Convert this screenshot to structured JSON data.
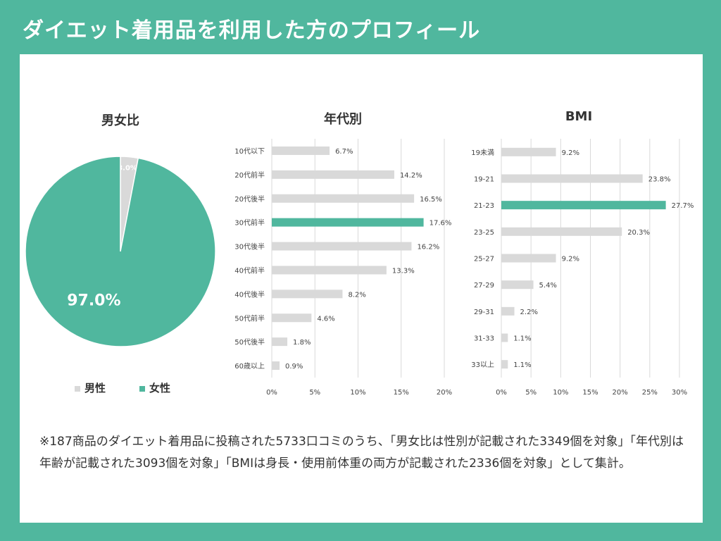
{
  "title": "ダイエット着用品を利用した方のプロフィール",
  "colors": {
    "accent": "#50b79e",
    "bar": "#d9d9d9",
    "background": "#ffffff"
  },
  "note": "※187商品のダイエット着用品に投稿された5733口コミのうち、「男女比は性別が記載された3349個を対象」「年代別は年齢が記載された3093個を対象」「BMIは身長・使用前体重の両方が記載された2336個を対象」として集計。",
  "chart_data": [
    {
      "type": "pie",
      "title": "男女比",
      "labels": [
        "男性",
        "女性"
      ],
      "values": [
        3.0,
        97.0
      ],
      "value_labels": [
        "3.0%",
        "97.0%"
      ],
      "colors": [
        "#d9d9d9",
        "#50b79e"
      ],
      "legend": "bottom"
    },
    {
      "type": "bar",
      "orientation": "horizontal",
      "title": "年代別",
      "categories": [
        "10代以下",
        "20代前半",
        "20代後半",
        "30代前半",
        "30代後半",
        "40代前半",
        "40代後半",
        "50代前半",
        "50代後半",
        "60歳以上"
      ],
      "values": [
        6.7,
        14.2,
        16.5,
        17.6,
        16.2,
        13.3,
        8.2,
        4.6,
        1.8,
        0.9
      ],
      "value_labels": [
        "6.7%",
        "14.2%",
        "16.5%",
        "17.6%",
        "16.2%",
        "13.3%",
        "8.2%",
        "4.6%",
        "1.8%",
        "0.9%"
      ],
      "highlight_index": 3,
      "xlim": [
        0,
        20
      ],
      "ticks": [
        "0%",
        "5%",
        "10%",
        "15%",
        "20%"
      ],
      "grid": true
    },
    {
      "type": "bar",
      "orientation": "horizontal",
      "title": "BMI",
      "categories": [
        "19未満",
        "19-21",
        "21-23",
        "23-25",
        "25-27",
        "27-29",
        "29-31",
        "31-33",
        "33以上"
      ],
      "values": [
        9.2,
        23.8,
        27.7,
        20.3,
        9.2,
        5.4,
        2.2,
        1.1,
        1.1
      ],
      "value_labels": [
        "9.2%",
        "23.8%",
        "27.7%",
        "20.3%",
        "9.2%",
        "5.4%",
        "2.2%",
        "1.1%",
        "1.1%"
      ],
      "highlight_index": 2,
      "xlim": [
        0,
        30
      ],
      "ticks": [
        "0%",
        "5%",
        "10%",
        "15%",
        "20%",
        "25%",
        "30%"
      ],
      "grid": true
    }
  ]
}
